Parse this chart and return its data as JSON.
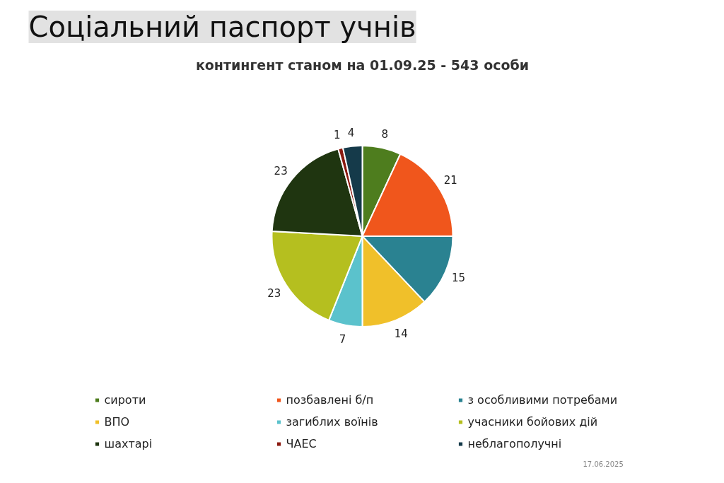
{
  "chart_data": {
    "type": "pie",
    "title": "Соціальний паспорт учнів",
    "subtitle": "контингент станом на 01.09.25 - 543 особи",
    "categories": [
      "сироти",
      "позбавлені б/п",
      "з особливими потребами",
      "ВПО",
      "загиблих воїнів",
      "учасники бойових дій",
      "шахтарі",
      "ЧАЕС",
      "неблагополучні"
    ],
    "values": [
      8,
      21,
      15,
      14,
      7,
      23,
      23,
      1,
      4
    ],
    "colors": [
      "#4e7d1e",
      "#f0561c",
      "#2a8291",
      "#f0c02a",
      "#5bc2cc",
      "#b5bf1f",
      "#1f3510",
      "#8b1a10",
      "#153a4a"
    ],
    "data_labels": true,
    "legend": "bottom",
    "annotations": [
      "17.06.2025"
    ]
  }
}
